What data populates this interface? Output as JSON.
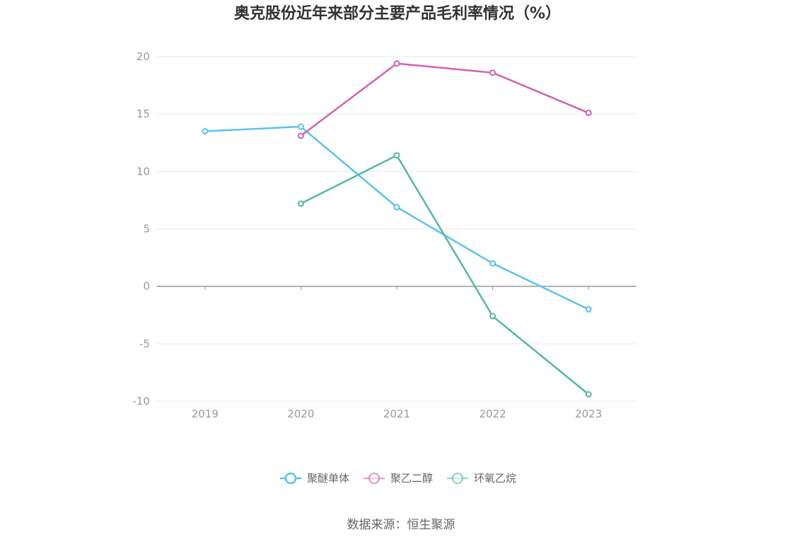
{
  "chart_data": {
    "type": "line",
    "title": "奥克股份近年来部分主要产品毛利率情况（%）",
    "xlabel": "",
    "ylabel": "",
    "categories": [
      "2019",
      "2020",
      "2021",
      "2022",
      "2023"
    ],
    "ylim": [
      -10,
      20
    ],
    "yticks": [
      20,
      15,
      10,
      5,
      0,
      -5,
      -10
    ],
    "grid": true,
    "legend_position": "bottom",
    "series": [
      {
        "name": "聚醚单体",
        "color": "#5bc2f0",
        "values": [
          13.5,
          13.9,
          6.9,
          2.0,
          -2.0
        ]
      },
      {
        "name": "聚乙二醇",
        "color": "#d462ad",
        "values": [
          null,
          13.1,
          19.4,
          18.6,
          15.1
        ]
      },
      {
        "name": "环氧乙烷",
        "color": "#52b9a0",
        "values": [
          null,
          7.2,
          11.4,
          -2.6,
          -9.4
        ]
      }
    ],
    "source": "数据来源：恒生聚源"
  }
}
